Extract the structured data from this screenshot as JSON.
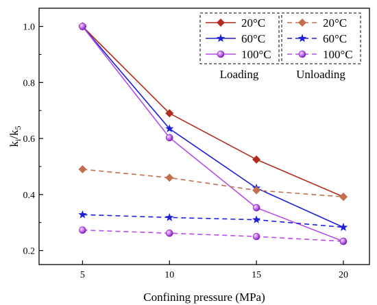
{
  "chart_data": {
    "type": "line",
    "xlabel": "Confining pressure (MPa)",
    "ylabel_main": "k",
    "ylabel_sub1": "i",
    "ylabel_mid": "/k",
    "ylabel_sub2": "5",
    "x": [
      5,
      10,
      15,
      20
    ],
    "xlim": [
      2.5,
      21.5
    ],
    "ylim": [
      0.15,
      1.065
    ],
    "xticks": [
      5,
      10,
      15,
      20
    ],
    "yticks": [
      0.2,
      0.4,
      0.6,
      0.8,
      1.0
    ],
    "ytick_labels": [
      "0.2",
      "0.4",
      "0.6",
      "0.8",
      "1.0"
    ],
    "grid": false,
    "legend_position": "top-right",
    "legend_groups": [
      "Loading",
      "Unloading"
    ],
    "series": [
      {
        "name": "20°C",
        "group": "Loading",
        "color": "#B22B1C",
        "marker": "diamond",
        "dash": false,
        "values": [
          1.0,
          0.69,
          0.525,
          0.392
        ]
      },
      {
        "name": "60°C",
        "group": "Loading",
        "color": "#1F1FD6",
        "marker": "star",
        "dash": false,
        "values": [
          1.0,
          0.635,
          0.423,
          0.283
        ]
      },
      {
        "name": "100°C",
        "group": "Loading",
        "color": "#B44EE6",
        "marker": "ball",
        "dash": false,
        "values": [
          1.0,
          0.603,
          0.353,
          0.233
        ]
      },
      {
        "name": "20°C",
        "group": "Unloading",
        "color": "#C0704F",
        "marker": "diamond",
        "dash": true,
        "values": [
          0.49,
          0.46,
          0.415,
          0.392
        ]
      },
      {
        "name": "60°C",
        "group": "Unloading",
        "color": "#1F1FD6",
        "marker": "star",
        "dash": true,
        "values": [
          0.328,
          0.318,
          0.31,
          0.283
        ]
      },
      {
        "name": "100°C",
        "group": "Unloading",
        "color": "#B44EE6",
        "marker": "ball",
        "dash": true,
        "values": [
          0.273,
          0.262,
          0.25,
          0.233
        ]
      }
    ]
  }
}
